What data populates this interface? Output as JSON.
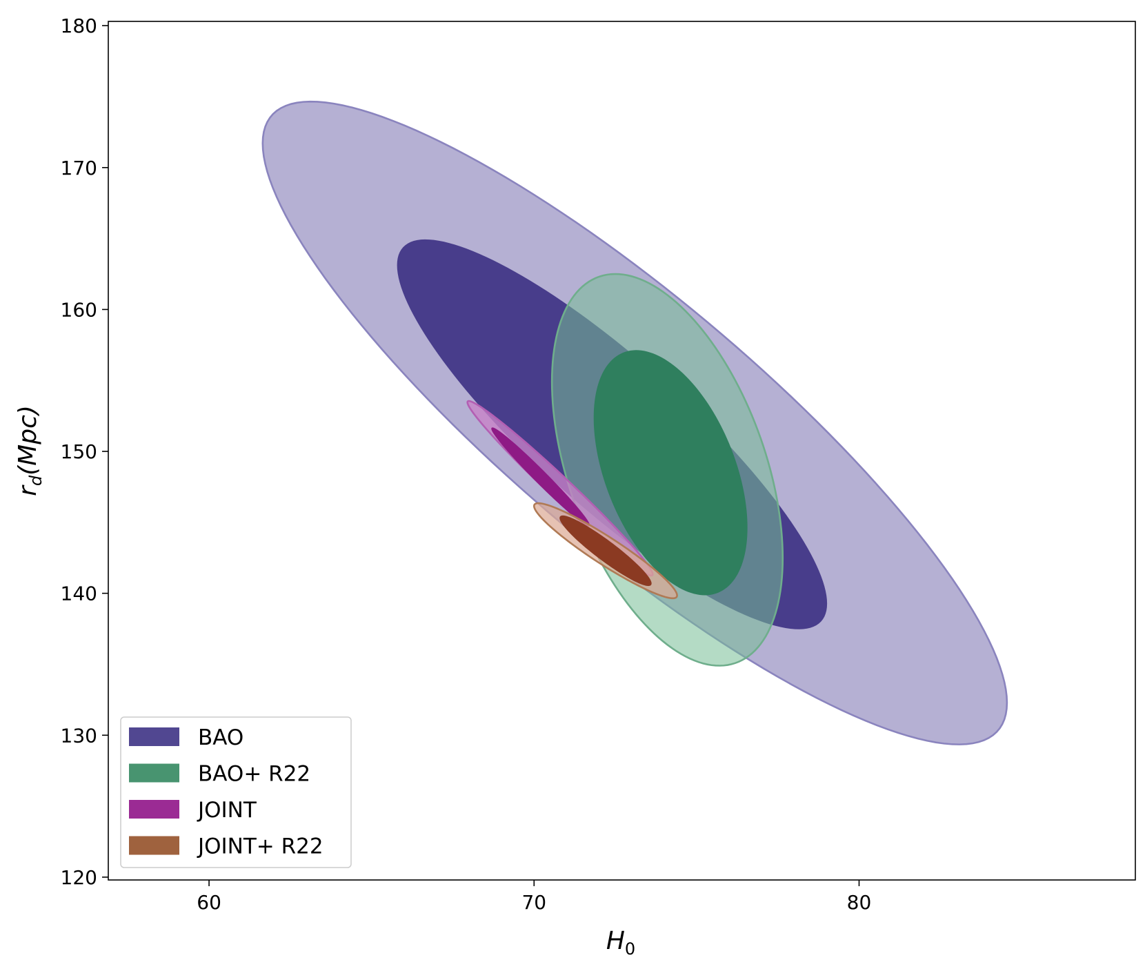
{
  "chart_data": {
    "type": "contour",
    "title": "",
    "xlabel": "H",
    "xlabel_sub": "0",
    "ylabel_main": "r",
    "ylabel_sub": "d",
    "ylabel_rest": "(Mpc)",
    "xlim": [
      56.9,
      88.5
    ],
    "ylim": [
      119.8,
      180.3
    ],
    "xticks": [
      60,
      70,
      80
    ],
    "xtick_labels": [
      "60",
      "70",
      "80"
    ],
    "yticks": [
      120,
      130,
      140,
      150,
      160,
      170,
      180
    ],
    "ytick_labels": [
      "120",
      "130",
      "140",
      "150",
      "160",
      "170",
      "180"
    ],
    "legend_position": "lower-left",
    "series": [
      {
        "name": "BAO",
        "color": "#483D8B",
        "contours": [
          {
            "level": "2sigma",
            "center": [
              73.1,
              152.0
            ],
            "extent_x": [
              61.7,
              84.6
            ],
            "extent_y": [
              129.4,
              174.7
            ],
            "rho": -0.87,
            "fill": "#B5B0D3",
            "edge": "#8A84BE"
          },
          {
            "level": "1sigma",
            "center": [
              72.4,
              151.2
            ],
            "extent_x": [
              65.8,
              79.0
            ],
            "extent_y": [
              137.6,
              165.0
            ],
            "rho": -0.87,
            "fill": "#483D8B",
            "edge": "#483D8B"
          }
        ]
      },
      {
        "name": "BAO+ R22",
        "color": "#3E8E68",
        "contours": [
          {
            "level": "2sigma",
            "center": [
              74.1,
              148.7
            ],
            "extent_x": [
              70.6,
              77.7
            ],
            "extent_y": [
              134.9,
              162.5
            ],
            "rho": -0.45,
            "fill": "rgba(118,190,150,0.55)",
            "edge": "#6FAE8C"
          },
          {
            "level": "1sigma",
            "center": [
              74.2,
              148.5
            ],
            "extent_x": [
              71.8,
              76.5
            ],
            "extent_y": [
              139.9,
              157.1
            ],
            "rho": -0.45,
            "fill": "#2F7F5E",
            "edge": "#2F7F5E"
          }
        ]
      },
      {
        "name": "JOINT",
        "color": "#96208E",
        "contours": [
          {
            "level": "2sigma",
            "center": [
              70.8,
              147.4
            ],
            "extent_x": [
              67.8,
              73.5
            ],
            "extent_y": [
              141.2,
              153.5
            ],
            "rho": -0.985,
            "fill": "rgba(200,130,200,0.78)",
            "edge": "#B35FB3"
          },
          {
            "level": "1sigma",
            "center": [
              70.2,
              148.2
            ],
            "extent_x": [
              68.8,
              71.8
            ],
            "extent_y": [
              144.0,
              150.9
            ],
            "rho": -0.985,
            "fill": "#8E1A85",
            "edge": "#8E1A85"
          }
        ]
      },
      {
        "name": "JOINT+ R22",
        "color": "#9A5A34",
        "contours": [
          {
            "level": "2sigma",
            "center": [
              72.2,
              143.0
            ],
            "extent_x": [
              70.0,
              74.4
            ],
            "extent_y": [
              139.7,
              146.4
            ],
            "rho": -0.94,
            "fill": "rgba(220,170,150,0.72)",
            "edge": "#B07A55"
          },
          {
            "level": "1sigma",
            "center": [
              72.2,
              143.0
            ],
            "extent_x": [
              70.8,
              73.6
            ],
            "extent_y": [
              141.3,
              146.2
            ],
            "rho": -0.94,
            "fill": "#8B3A22",
            "edge": "#8B3A22"
          }
        ]
      }
    ]
  }
}
